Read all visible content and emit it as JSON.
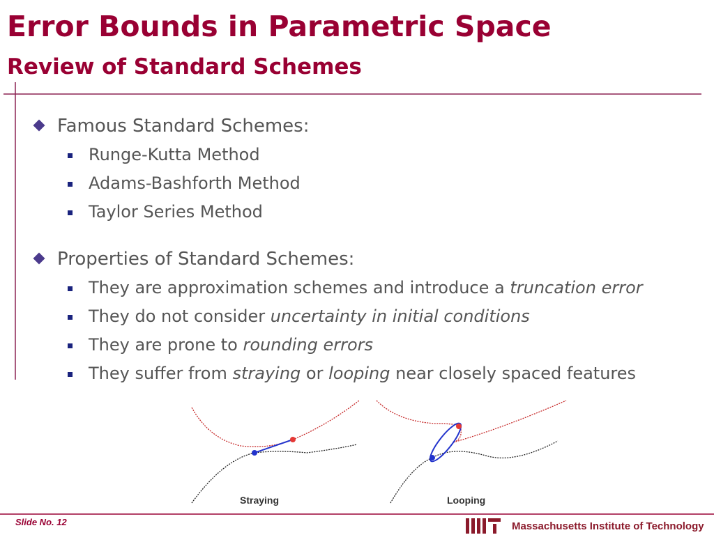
{
  "header": {
    "title": "Error Bounds in Parametric Space",
    "subtitle": "Review of Standard Schemes"
  },
  "sections": [
    {
      "heading": "Famous Standard Schemes:",
      "items": [
        [
          {
            "text": "Runge-Kutta Method"
          }
        ],
        [
          {
            "text": "Adams-Bashforth Method"
          }
        ],
        [
          {
            "text": "Taylor Series Method"
          }
        ]
      ]
    },
    {
      "heading": "Properties of Standard Schemes:",
      "items": [
        [
          {
            "text": "They are approximation schemes and introduce a "
          },
          {
            "text": "truncation error",
            "italic": true
          }
        ],
        [
          {
            "text": "They do not consider "
          },
          {
            "text": "uncertainty in initial conditions",
            "italic": true
          }
        ],
        [
          {
            "text": "They are prone to "
          },
          {
            "text": "rounding errors",
            "italic": true
          }
        ],
        [
          {
            "text": "They suffer from "
          },
          {
            "text": "straying",
            "italic": true
          },
          {
            "text": " or "
          },
          {
            "text": "looping",
            "italic": true
          },
          {
            "text": " near closely spaced features"
          }
        ]
      ]
    }
  ],
  "figure": {
    "captions": [
      "Straying",
      "Looping"
    ]
  },
  "footer": {
    "slide_number": "Slide No. 12",
    "institution": "Massachusetts Institute of Technology"
  }
}
